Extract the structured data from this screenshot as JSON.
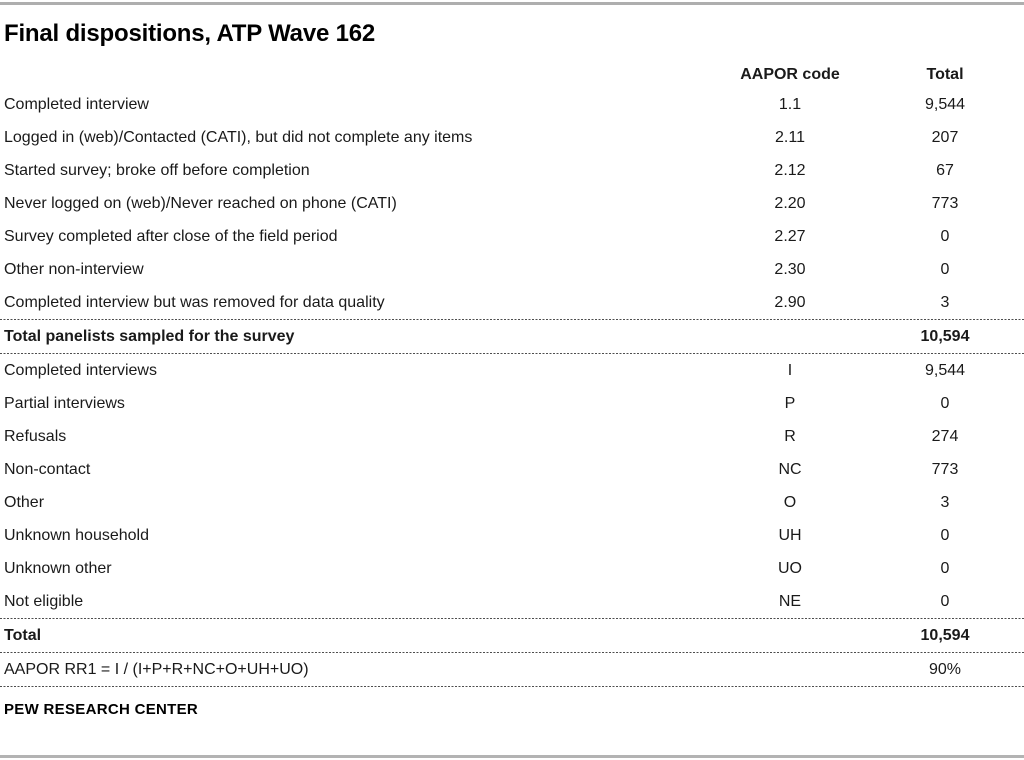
{
  "title": "Final dispositions, ATP Wave 162",
  "table": {
    "header": {
      "code_label": "AAPOR code",
      "total_label": "Total"
    },
    "rows": [
      {
        "label": "Completed interview",
        "code": "1.1",
        "total": "9,544"
      },
      {
        "label": "Logged in (web)/Contacted (CATI), but did not complete any items",
        "code": "2.11",
        "total": "207"
      },
      {
        "label": "Started survey; broke off before completion",
        "code": "2.12",
        "total": "67"
      },
      {
        "label": "Never logged on (web)/Never reached on phone (CATI)",
        "code": "2.20",
        "total": "773"
      },
      {
        "label": "Survey completed after close of the field period",
        "code": "2.27",
        "total": "0"
      },
      {
        "label": "Other non-interview",
        "code": "2.30",
        "total": "0"
      },
      {
        "label": "Completed interview but was removed for data quality",
        "code": "2.90",
        "total": "3"
      },
      {
        "label": "Total panelists sampled for the survey",
        "code": "",
        "total": "10,594"
      },
      {
        "label": "Completed interviews",
        "code": "I",
        "total": "9,544"
      },
      {
        "label": "Partial interviews",
        "code": "P",
        "total": "0"
      },
      {
        "label": "Refusals",
        "code": "R",
        "total": "274"
      },
      {
        "label": "Non-contact",
        "code": "NC",
        "total": "773"
      },
      {
        "label": "Other",
        "code": "O",
        "total": "3"
      },
      {
        "label": "Unknown household",
        "code": "UH",
        "total": "0"
      },
      {
        "label": "Unknown other",
        "code": "UO",
        "total": "0"
      },
      {
        "label": "Not eligible",
        "code": "NE",
        "total": "0"
      },
      {
        "label": "Total",
        "code": "",
        "total": "10,594"
      },
      {
        "label": "AAPOR RR1 = I / (I+P+R+NC+O+UH+UO)",
        "code": "",
        "total": "90%"
      }
    ]
  },
  "footer": {
    "source": "PEW RESEARCH CENTER"
  },
  "colors": {
    "text": "#1a1a1a",
    "rule_gray": "#aeaeae",
    "dash_gray": "#4d4d4d",
    "background": "#ffffff"
  }
}
